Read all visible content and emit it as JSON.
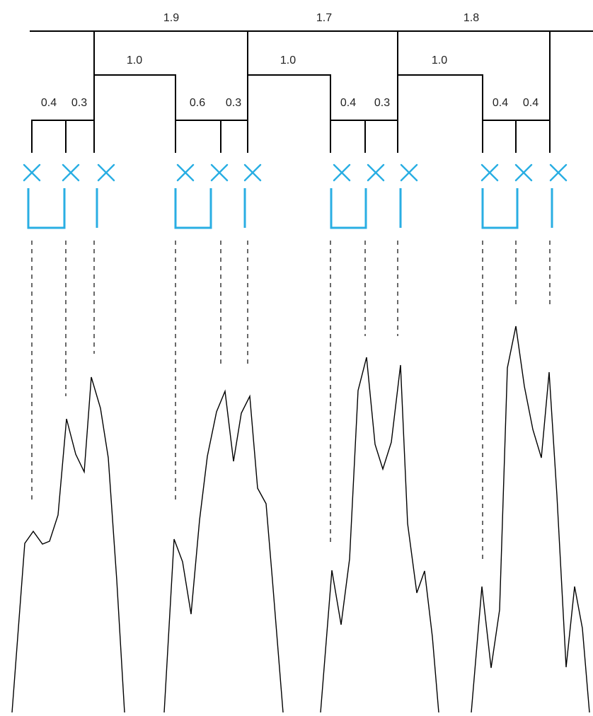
{
  "colors": {
    "line": "#000000",
    "marker": "#29aee3",
    "dashed": "#444444"
  },
  "top_labels": [
    "1.9",
    "1.7",
    "1.8"
  ],
  "groups": [
    {
      "label": "1.0",
      "left": "0.4",
      "right": "0.3"
    },
    {
      "label": "1.0",
      "left": "0.6",
      "right": "0.3"
    },
    {
      "label": "1.0",
      "left": "0.4",
      "right": "0.3"
    },
    {
      "label": "1.0",
      "left": "0.4",
      "right": "0.4"
    }
  ]
}
